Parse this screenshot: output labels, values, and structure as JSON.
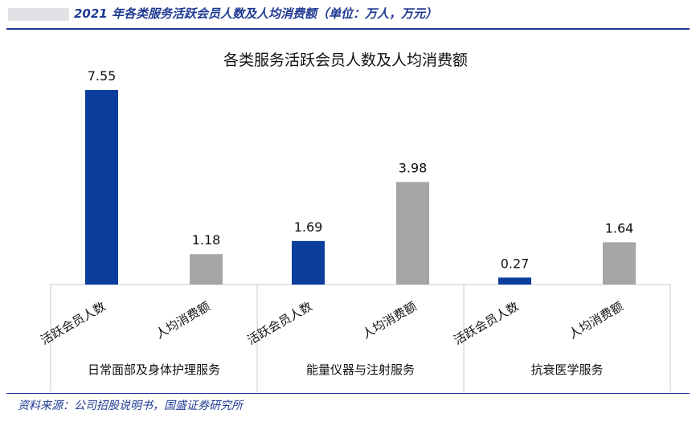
{
  "header": {
    "title": "2021 年各类服务活跃会员人数及人均消费额（单位：万人，万元）"
  },
  "chart_data": {
    "type": "bar",
    "title": "各类服务活跃会员人数及人均消费额",
    "groups": [
      "日常面部及身体护理服务",
      "能量仪器与注射服务",
      "抗衰医学服务"
    ],
    "subcategories": [
      "活跃会员人数",
      "人均消费额"
    ],
    "values": [
      [
        7.55,
        1.18
      ],
      [
        1.69,
        3.98
      ],
      [
        0.27,
        1.64
      ]
    ],
    "value_labels": [
      [
        "7.55",
        "1.18"
      ],
      [
        "1.69",
        "3.98"
      ],
      [
        "0.27",
        "1.64"
      ]
    ],
    "ylim": [
      0,
      8
    ],
    "grid": false,
    "legend": "none",
    "colors": {
      "members": "#0a3d9c",
      "spend": "#a6a6a6",
      "axis": "#c8c8c8"
    }
  },
  "footer": {
    "source": "资料来源：公司招股说明书，国盛证券研究所"
  }
}
